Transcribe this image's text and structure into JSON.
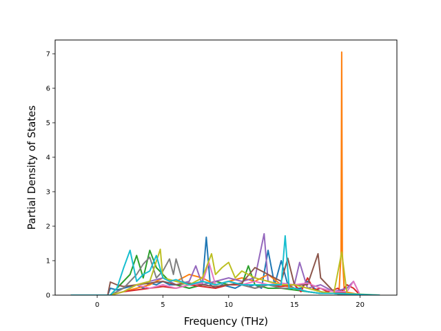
{
  "chart_data": {
    "type": "line",
    "title": "",
    "xlabel": "Frequency (THz)",
    "ylabel": "Partial Density of States",
    "xlim": [
      -3.2,
      22.8
    ],
    "ylim": [
      0,
      7.4
    ],
    "x_ticks": [
      0,
      5,
      10,
      15,
      20
    ],
    "x_tick_labels": [
      "0",
      "5",
      "10",
      "15",
      "20"
    ],
    "y_ticks": [
      0,
      1,
      2,
      3,
      4,
      5,
      6,
      7
    ],
    "y_tick_labels": [
      "0",
      "1",
      "2",
      "3",
      "4",
      "5",
      "6",
      "7"
    ],
    "grid": false,
    "legend": "none",
    "series": [
      {
        "color": "#1f77b4",
        "x": [
          -2,
          0.8,
          1,
          1.5,
          2,
          2.5,
          3,
          3.5,
          4,
          4.5,
          5,
          5.5,
          6,
          6.5,
          7,
          7.5,
          8,
          8.3,
          8.6,
          9,
          9.5,
          10,
          10.5,
          11,
          11.5,
          12,
          12.5,
          13,
          13.5,
          14,
          14.5,
          15,
          15.5,
          16,
          16.5,
          17,
          17.5,
          18,
          18.5,
          19,
          19.5,
          20,
          21.5
        ],
        "y": [
          0,
          0,
          0.2,
          0.15,
          0.2,
          0.25,
          0.3,
          0.2,
          0.35,
          0.3,
          0.4,
          0.3,
          0.3,
          0.25,
          0.2,
          0.25,
          0.3,
          1.68,
          0.3,
          0.2,
          0.3,
          0.25,
          0.2,
          0.3,
          0.25,
          0.3,
          0.2,
          1.3,
          0.3,
          1.0,
          0.3,
          0.2,
          0.2,
          0.4,
          0.2,
          0.1,
          0.05,
          0.05,
          0.05,
          0.05,
          0.05,
          0,
          0
        ]
      },
      {
        "color": "#ff7f0e",
        "x": [
          -2,
          1,
          2,
          3,
          4,
          5,
          6,
          7,
          8,
          9,
          10,
          11,
          12,
          13,
          14,
          15,
          16,
          17,
          18,
          18.4,
          18.55,
          18.6,
          18.65,
          18.8,
          19.5,
          20,
          21.5
        ],
        "y": [
          0,
          0,
          0.1,
          0.2,
          0.3,
          0.5,
          0.4,
          0.6,
          0.5,
          0.3,
          0.4,
          0.5,
          0.4,
          0.6,
          0.3,
          0.2,
          0.1,
          0.05,
          0.05,
          0.1,
          1.2,
          7.05,
          1.2,
          0.1,
          0.05,
          0,
          0
        ]
      },
      {
        "color": "#2ca02c",
        "x": [
          -2,
          1,
          1.5,
          2,
          2.5,
          3,
          3.5,
          4,
          4.5,
          5,
          5.5,
          6,
          7,
          8,
          9,
          10,
          11,
          11.5,
          12,
          13,
          14,
          15,
          16,
          17,
          18,
          19,
          21.5
        ],
        "y": [
          0,
          0,
          0.2,
          0.4,
          0.6,
          1.15,
          0.5,
          1.3,
          0.8,
          0.6,
          0.4,
          0.3,
          0.2,
          0.3,
          0.4,
          0.3,
          0.3,
          0.85,
          0.3,
          0.2,
          0.2,
          0.15,
          0.1,
          0.05,
          0.05,
          0,
          0
        ]
      },
      {
        "color": "#d62728",
        "x": [
          -2,
          1,
          2,
          3,
          4,
          5,
          6,
          7,
          8,
          9,
          10,
          11,
          12,
          13,
          14,
          15,
          15.5,
          16,
          16.5,
          17,
          17.5,
          18,
          18.3,
          18.6,
          19,
          19.5,
          20,
          21.5
        ],
        "y": [
          0,
          0,
          0.1,
          0.15,
          0.2,
          0.25,
          0.2,
          0.3,
          0.25,
          0.2,
          0.3,
          0.3,
          0.2,
          0.3,
          0.25,
          0.3,
          0.1,
          0.5,
          0.15,
          0.2,
          0.1,
          0.15,
          0.2,
          0.1,
          0.3,
          0.2,
          0,
          0
        ]
      },
      {
        "color": "#9467bd",
        "x": [
          -2,
          1,
          2,
          3,
          4,
          5,
          6,
          7,
          7.5,
          8,
          9,
          10,
          11,
          12,
          12.7,
          13,
          14,
          15,
          15.4,
          16,
          17,
          18,
          19,
          19.5,
          20,
          21.5
        ],
        "y": [
          0,
          0,
          0.1,
          0.3,
          0.4,
          0.5,
          0.3,
          0.4,
          0.85,
          0.3,
          0.4,
          0.5,
          0.4,
          0.5,
          1.78,
          0.4,
          0.3,
          0.3,
          0.95,
          0.2,
          0.3,
          0.1,
          0.2,
          0.4,
          0,
          0
        ]
      },
      {
        "color": "#8c564b",
        "x": [
          -2,
          0.8,
          1,
          1.5,
          2,
          3,
          4,
          5,
          6,
          7,
          8,
          9,
          10,
          11,
          12,
          13,
          14,
          14.5,
          15,
          16,
          16.8,
          17,
          18,
          19,
          20,
          21.5
        ],
        "y": [
          0,
          0,
          0.38,
          0.3,
          0.25,
          0.3,
          0.35,
          0.4,
          0.3,
          0.35,
          0.3,
          0.25,
          0.3,
          0.35,
          0.8,
          0.6,
          0.4,
          1.07,
          0.3,
          0.3,
          1.2,
          0.5,
          0.1,
          0.05,
          0,
          0
        ]
      },
      {
        "color": "#e377c2",
        "x": [
          -2,
          1,
          2,
          3,
          4,
          5,
          6,
          7,
          8,
          8.5,
          9,
          10,
          11,
          12,
          13,
          14,
          15,
          16,
          17,
          18,
          19,
          19.5,
          20,
          21.5
        ],
        "y": [
          0,
          0,
          0.1,
          0.3,
          0.2,
          0.3,
          0.2,
          0.3,
          0.35,
          0.95,
          0.3,
          0.4,
          0.3,
          0.4,
          0.3,
          0.35,
          0.3,
          0.35,
          0.2,
          0.1,
          0.1,
          0.4,
          0,
          0
        ]
      },
      {
        "color": "#7f7f7f",
        "x": [
          -2,
          1,
          2,
          3,
          3.5,
          4,
          4.5,
          5,
          5.5,
          5.8,
          6,
          6.5,
          7,
          8,
          9,
          10,
          11,
          12,
          13,
          14,
          15,
          16,
          17,
          18,
          19,
          21.5
        ],
        "y": [
          0,
          0,
          0.2,
          0.6,
          0.9,
          1.1,
          0.5,
          0.7,
          1.05,
          0.6,
          1.05,
          0.4,
          0.3,
          0.4,
          0.3,
          0.4,
          0.3,
          0.2,
          0.3,
          0.2,
          0.2,
          0.1,
          0.05,
          0.05,
          0,
          0
        ]
      },
      {
        "color": "#bcbf22",
        "x": [
          -2,
          1,
          2,
          3,
          4,
          4.8,
          5,
          6,
          7,
          8,
          8.7,
          9,
          9.5,
          10,
          10.5,
          11,
          12,
          13,
          14,
          15,
          16,
          17,
          18,
          18.6,
          19,
          21.5
        ],
        "y": [
          0,
          0,
          0.1,
          0.3,
          0.4,
          1.33,
          0.5,
          0.4,
          0.3,
          0.5,
          1.2,
          0.6,
          0.8,
          0.95,
          0.5,
          0.7,
          0.5,
          0.4,
          0.3,
          0.3,
          0.2,
          0.1,
          0.05,
          1.25,
          0.05,
          0
        ]
      },
      {
        "color": "#17becf",
        "x": [
          -2,
          1,
          1.5,
          2,
          2.5,
          3,
          3.5,
          4,
          4.5,
          5,
          5.5,
          6,
          7,
          8,
          9,
          10,
          11,
          12,
          13,
          14,
          14.3,
          14.6,
          15,
          16,
          17,
          18,
          21.5
        ],
        "y": [
          0,
          0,
          0.2,
          0.78,
          1.3,
          0.4,
          0.6,
          0.7,
          1.15,
          0.5,
          0.4,
          0.45,
          0.3,
          0.4,
          0.3,
          0.4,
          0.3,
          0.3,
          0.3,
          0.3,
          1.72,
          0.2,
          0.2,
          0.1,
          0.05,
          0.05,
          0
        ]
      }
    ]
  }
}
